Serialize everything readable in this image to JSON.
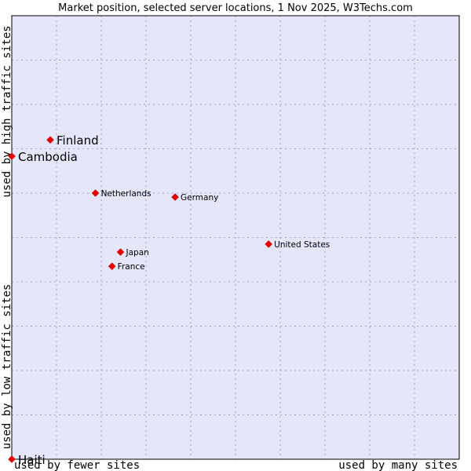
{
  "chart_data": {
    "type": "scatter",
    "title": "Market position, selected server locations, 1 Nov 2025, W3Techs.com",
    "xlabel_low": "used by fewer sites",
    "xlabel_high": "used by many sites",
    "ylabel_low": "used by low traffic sites",
    "ylabel_high": "used by high traffic sites",
    "xlim": [
      0,
      10
    ],
    "ylim": [
      0,
      10
    ],
    "grid": true,
    "colors": {
      "plot_bg": "#e6e6fa",
      "grid": "#a0a0b8",
      "point": "#ee0000",
      "border": "#000000"
    },
    "points": [
      {
        "label": "Finland",
        "x": 0.86,
        "y": 7.2,
        "emphasis": true
      },
      {
        "label": "Cambodia",
        "x": 0.0,
        "y": 6.83,
        "emphasis": true
      },
      {
        "label": "Netherlands",
        "x": 1.87,
        "y": 6.0,
        "emphasis": false
      },
      {
        "label": "Germany",
        "x": 3.65,
        "y": 5.91,
        "emphasis": false
      },
      {
        "label": "United States",
        "x": 5.74,
        "y": 4.85,
        "emphasis": false
      },
      {
        "label": "Japan",
        "x": 2.43,
        "y": 4.67,
        "emphasis": false
      },
      {
        "label": "France",
        "x": 2.24,
        "y": 4.35,
        "emphasis": false
      },
      {
        "label": "Haiti",
        "x": 0.0,
        "y": 0.0,
        "emphasis": true
      }
    ]
  }
}
